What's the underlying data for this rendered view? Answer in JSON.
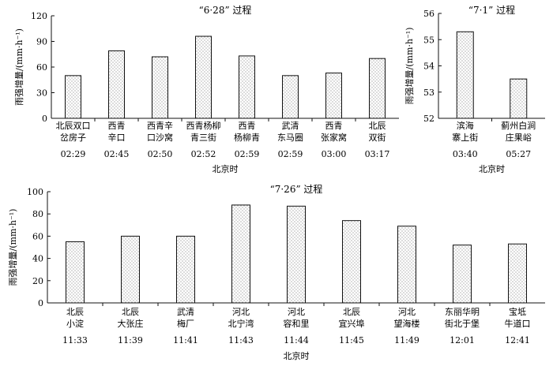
{
  "chart_data": [
    {
      "type": "bar",
      "title": "“6·28” 过程",
      "xlabel": "北京时",
      "ylabel": "雨强增量/(mm·h⁻¹)",
      "ylim": [
        0,
        120
      ],
      "yticks": [
        0,
        30,
        60,
        90,
        120
      ],
      "categories": [
        [
          "北辰双口",
          "岔房子",
          "02:29"
        ],
        [
          "西青",
          "辛口",
          "02:45"
        ],
        [
          "西青辛",
          "口沙窝",
          "02:50"
        ],
        [
          "西青杨柳",
          "青三街",
          "02:52"
        ],
        [
          "西青",
          "杨柳青",
          "02:59"
        ],
        [
          "武清",
          "东马圈",
          "02:59"
        ],
        [
          "西青",
          "张家窝",
          "03:00"
        ],
        [
          "北辰",
          "双街",
          "03:17"
        ]
      ],
      "values": [
        50,
        79,
        72,
        96,
        73,
        50,
        53,
        70
      ]
    },
    {
      "type": "bar",
      "title": "“7·1” 过程",
      "xlabel": "北京时",
      "ylabel": "雨强增量/(mm·h⁻¹)",
      "ylim": [
        52,
        56
      ],
      "yticks": [
        52,
        53,
        54,
        55,
        56
      ],
      "categories": [
        [
          "滨海",
          "寨上街",
          "03:40"
        ],
        [
          "蓟州白涧",
          "庄果峪",
          "05:27"
        ]
      ],
      "values": [
        55.3,
        53.5
      ]
    },
    {
      "type": "bar",
      "title": "“7·26” 过程",
      "xlabel": "北京时",
      "ylabel": "雨强增量/(mm·h⁻¹)",
      "ylim": [
        0,
        100
      ],
      "yticks": [
        0,
        20,
        40,
        60,
        80,
        100
      ],
      "categories": [
        [
          "北辰",
          "小淀",
          "11:33"
        ],
        [
          "北辰",
          "大张庄",
          "11:39"
        ],
        [
          "武清",
          "梅厂",
          "11:41"
        ],
        [
          "河北",
          "北宁湾",
          "11:43"
        ],
        [
          "河北",
          "容和里",
          "11:44"
        ],
        [
          "北辰",
          "宜兴埠",
          "11:45"
        ],
        [
          "河北",
          "望海楼",
          "11:49"
        ],
        [
          "东丽华明",
          "街北于堡",
          "12:01"
        ],
        [
          "宝坻",
          "牛道口",
          "12:41"
        ]
      ],
      "values": [
        55,
        60,
        60,
        88,
        87,
        74,
        69,
        52,
        53
      ]
    }
  ]
}
